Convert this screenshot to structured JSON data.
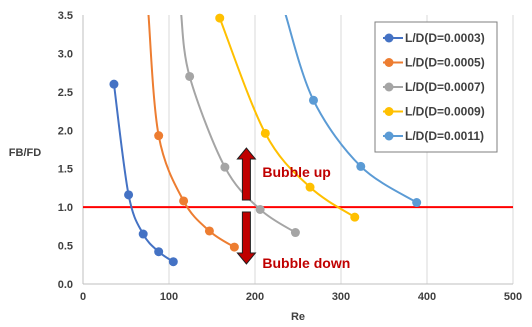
{
  "chart_data": {
    "type": "line",
    "title": "",
    "xlabel": "Re",
    "ylabel": "FB/FD",
    "xlim": [
      0,
      500
    ],
    "ylim": [
      0,
      3.5
    ],
    "xticks": [
      "0",
      "100",
      "200",
      "300",
      "400",
      "500"
    ],
    "yticks": [
      "0.0",
      "0.5",
      "1.0",
      "1.5",
      "2.0",
      "2.5",
      "3.0",
      "3.5"
    ],
    "grid": "vertical",
    "legend_position": "top-right",
    "series": [
      {
        "name": "L/D(D=0.0003)",
        "color": "#4472c4",
        "points": [
          [
            36,
            2.6
          ],
          [
            53,
            1.16
          ],
          [
            70,
            0.65
          ],
          [
            88,
            0.42
          ],
          [
            105,
            0.29
          ]
        ]
      },
      {
        "name": "L/D(D=0.0005)",
        "color": "#ed7d31",
        "points": [
          [
            88,
            1.93
          ],
          [
            117,
            1.08
          ],
          [
            147,
            0.69
          ],
          [
            176,
            0.48
          ]
        ],
        "curve_start": [
          76,
          3.5
        ]
      },
      {
        "name": "L/D(D=0.0007)",
        "color": "#a5a5a5",
        "points": [
          [
            124,
            2.7
          ],
          [
            165,
            1.52
          ],
          [
            206,
            0.97
          ],
          [
            247,
            0.67
          ]
        ],
        "curve_start": [
          114,
          3.5
        ]
      },
      {
        "name": "L/D(D=0.0009)",
        "color": "#ffc000",
        "points": [
          [
            159,
            3.46
          ],
          [
            212,
            1.96
          ],
          [
            264,
            1.26
          ],
          [
            316,
            0.87
          ]
        ]
      },
      {
        "name": "L/D(D=0.0011)",
        "color": "#5b9bd5",
        "points": [
          [
            268,
            2.39
          ],
          [
            323,
            1.53
          ],
          [
            388,
            1.06
          ]
        ],
        "curve_start": [
          235,
          3.5
        ]
      }
    ],
    "reference_line": {
      "y": 1.0,
      "color": "#ff0000"
    },
    "annotations": [
      {
        "text": "Bubble up",
        "direction": "up",
        "x": 190
      },
      {
        "text": "Bubble down",
        "direction": "down",
        "x": 190
      }
    ]
  }
}
